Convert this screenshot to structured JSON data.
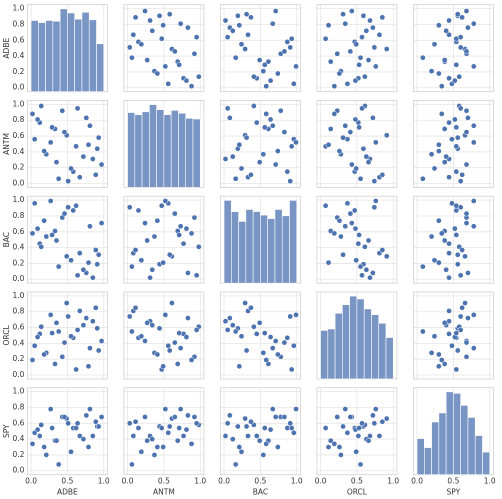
{
  "chart_data": {
    "type": "pairplot",
    "variables": [
      "ADBE",
      "ANTM",
      "BAC",
      "ORCL",
      "SPY"
    ],
    "color": "#4c72b0",
    "grid": true,
    "xlim": [
      -0.05,
      1.05
    ],
    "ylim": [
      -0.05,
      1.05
    ],
    "xticks": [
      {
        "value": 0,
        "label": "0.0"
      },
      {
        "value": 0.5,
        "label": "0.5"
      },
      {
        "value": 1,
        "label": "1.0"
      }
    ],
    "yticks": [
      {
        "value": 0,
        "label": "0.0"
      },
      {
        "value": 0.2,
        "label": "0.2"
      },
      {
        "value": 0.4,
        "label": "0.4"
      },
      {
        "value": 0.6,
        "label": "0.6"
      },
      {
        "value": 0.8,
        "label": "0.8"
      },
      {
        "value": 1,
        "label": "1.0"
      }
    ],
    "series": [
      {
        "name": "ADBE",
        "values": [
          0.12,
          0.85,
          0.43,
          0.67,
          0.05,
          0.91,
          0.33,
          0.58,
          0.76,
          0.21,
          0.49,
          0.97,
          0.14,
          0.62,
          0.38,
          0.81,
          0.27,
          0.55,
          0.02,
          0.72,
          0.46,
          0.89,
          0.18,
          0.64,
          0.35,
          0.93,
          0.09,
          0.51,
          0.79,
          0.29
        ]
      },
      {
        "name": "ANTM",
        "values": [
          0.77,
          0.31,
          0.92,
          0.08,
          0.56,
          0.44,
          0.69,
          0.15,
          0.83,
          0.37,
          0.61,
          0.24,
          0.98,
          0.47,
          0.06,
          0.73,
          0.52,
          0.19,
          0.88,
          0.34,
          0.65,
          0.11,
          0.41,
          0.95,
          0.27,
          0.58,
          0.81,
          0.03,
          0.49,
          0.71
        ]
      },
      {
        "name": "BAC",
        "values": [
          0.45,
          0.02,
          0.78,
          0.33,
          0.96,
          0.19,
          0.61,
          0.87,
          0.08,
          0.54,
          0.29,
          0.71,
          0.41,
          0.93,
          0.16,
          0.67,
          0.99,
          0.24,
          0.58,
          0.12,
          0.83,
          0.37,
          0.74,
          0.05,
          0.49,
          0.31,
          0.64,
          0.91,
          0.21,
          0.56
        ]
      },
      {
        "name": "ORCL",
        "values": [
          0.52,
          0.68,
          0.23,
          0.81,
          0.37,
          0.59,
          0.14,
          0.47,
          0.72,
          0.28,
          0.91,
          0.43,
          0.61,
          0.07,
          0.55,
          0.34,
          0.76,
          0.49,
          0.19,
          0.63,
          0.41,
          0.85,
          0.26,
          0.57,
          0.66,
          0.31,
          0.48,
          0.74,
          0.11,
          0.53
        ]
      },
      {
        "name": "SPY",
        "values": [
          0.44,
          0.44,
          0.68,
          0.44,
          0.48,
          0.56,
          0.38,
          0.54,
          0.7,
          0.2,
          0.66,
          0.68,
          0.58,
          0.54,
          0.08,
          0.78,
          0.78,
          0.24,
          0.34,
          0.4,
          0.68,
          0.62,
          0.3,
          0.6,
          0.38,
          0.56,
          0.52,
          0.6,
          0.3,
          0.54
        ]
      }
    ],
    "histograms": [
      {
        "bins": [
          0,
          0.1,
          0.2,
          0.3,
          0.4,
          0.5,
          0.6,
          0.7,
          0.8,
          0.9,
          1
        ],
        "counts": [
          104,
          101,
          104,
          103,
          121,
          115,
          106,
          116,
          105,
          70
        ]
      },
      {
        "bins": [
          0,
          0.1,
          0.2,
          0.3,
          0.4,
          0.5,
          0.6,
          0.7,
          0.8,
          0.9,
          1
        ],
        "counts": [
          104,
          101,
          105,
          115,
          108,
          101,
          107,
          103,
          96,
          95
        ]
      },
      {
        "bins": [
          0,
          0.1,
          0.2,
          0.3,
          0.4,
          0.5,
          0.6,
          0.7,
          0.8,
          0.9,
          1
        ],
        "counts": [
          118,
          102,
          88,
          105,
          102,
          97,
          92,
          105,
          96,
          118
        ]
      },
      {
        "bins": [
          0,
          0.1,
          0.2,
          0.3,
          0.4,
          0.5,
          0.6,
          0.7,
          0.8,
          0.9,
          1
        ],
        "counts": [
          68,
          70,
          92,
          104,
          116,
          112,
          98,
          90,
          78,
          58
        ]
      },
      {
        "bins": [
          0,
          0.1,
          0.2,
          0.3,
          0.4,
          0.5,
          0.6,
          0.7,
          0.8,
          0.9,
          1
        ],
        "counts": [
          48,
          36,
          70,
          82,
          110,
          108,
          92,
          76,
          52,
          30
        ]
      }
    ]
  }
}
